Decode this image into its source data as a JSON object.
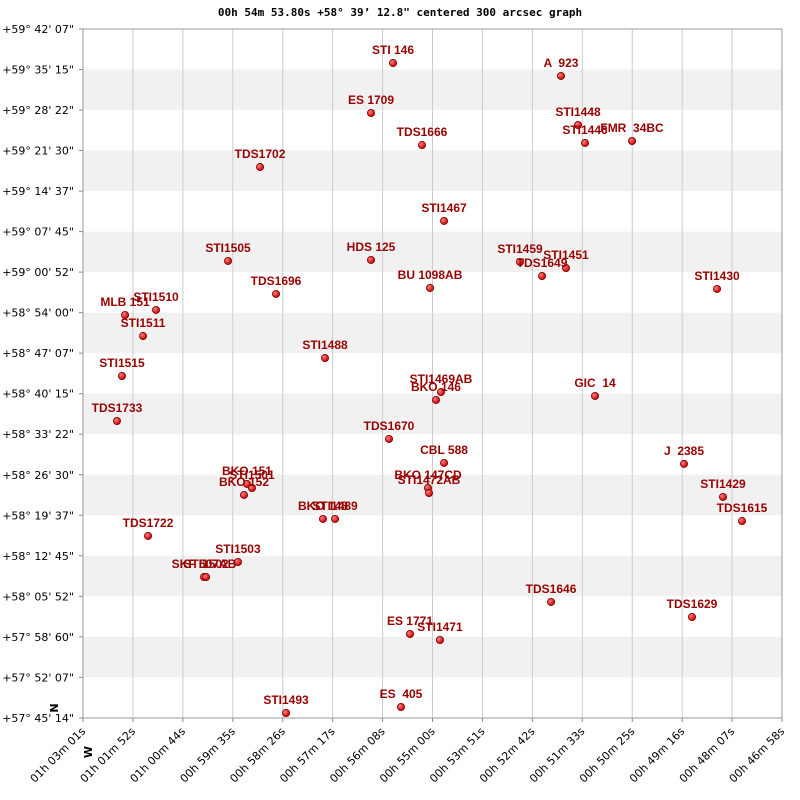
{
  "chart_data": {
    "type": "scatter",
    "title": "00h 54m 53.80s +58° 39’ 12.8\" centered 300 arcsec graph",
    "x_label": "W",
    "y_label": "N",
    "color": "#cc0000",
    "label_color": "#990000",
    "xlim": [
      3781,
      2818
    ],
    "ylim": [
      207914,
      214927
    ],
    "xticks": [
      {
        "value": 3781,
        "label": "01h 03m 01s"
      },
      {
        "value": 3712.2,
        "label": "01h 01m 52s"
      },
      {
        "value": 3643.4,
        "label": "01h 00m 44s"
      },
      {
        "value": 3574.6,
        "label": "00h 59m 35s"
      },
      {
        "value": 3505.8,
        "label": "00h 58m 26s"
      },
      {
        "value": 3437.1,
        "label": "00h 57m 17s"
      },
      {
        "value": 3368.3,
        "label": "00h 56m 08s"
      },
      {
        "value": 3299.5,
        "label": "00h 55m 00s"
      },
      {
        "value": 3230.7,
        "label": "00h 53m 51s"
      },
      {
        "value": 3161.9,
        "label": "00h 52m 42s"
      },
      {
        "value": 3093.1,
        "label": "00h 51m 33s"
      },
      {
        "value": 3024.3,
        "label": "00h 50m 25s"
      },
      {
        "value": 2955.5,
        "label": "00h 49m 16s"
      },
      {
        "value": 2886.8,
        "label": "00h 48m 07s"
      },
      {
        "value": 2818,
        "label": "00h 46m 58s"
      }
    ],
    "yticks": [
      {
        "value": 214927,
        "label": "+59° 42' 07\""
      },
      {
        "value": 214514.5,
        "label": "+59° 35' 15\""
      },
      {
        "value": 214102.1,
        "label": "+59° 28' 22\""
      },
      {
        "value": 213689.6,
        "label": "+59° 21' 30\""
      },
      {
        "value": 213277.1,
        "label": "+59° 14' 37\""
      },
      {
        "value": 212864.6,
        "label": "+59° 07' 45\""
      },
      {
        "value": 212452.2,
        "label": "+59° 00' 52\""
      },
      {
        "value": 212039.7,
        "label": "+58° 54' 00\""
      },
      {
        "value": 211627.2,
        "label": "+58° 47' 07\""
      },
      {
        "value": 211214.8,
        "label": "+58° 40' 15\""
      },
      {
        "value": 210802.3,
        "label": "+58° 33' 22\""
      },
      {
        "value": 210389.8,
        "label": "+58° 26' 30\""
      },
      {
        "value": 209977.4,
        "label": "+58° 19' 37\""
      },
      {
        "value": 209564.9,
        "label": "+58° 12' 45\""
      },
      {
        "value": 209152.4,
        "label": "+58° 05' 52\""
      },
      {
        "value": 208740,
        "label": "+57° 58' 60\""
      },
      {
        "value": 208327.5,
        "label": "+57° 52' 07\""
      },
      {
        "value": 207914,
        "label": "+57° 45' 14\""
      }
    ],
    "labels": [
      "STI 146",
      "A  923",
      "ES 1709",
      "STI1448",
      "STI1446",
      "FMR  34BC",
      "TDS1666",
      "TDS1702",
      "STI1467",
      "STI1505",
      "HDS 125",
      "STI1459",
      "TDS1649",
      "STI1451",
      "BU 1098AB",
      "TDS1696",
      "STI1430",
      "STI1510",
      "MLB 151",
      "STI1511",
      "STI1488",
      "STI1515",
      "STI1469AB",
      "BKO 146",
      "GIC  14",
      "TDS1733",
      "TDS1670",
      "CBL 588",
      "J  2385",
      "BKO 151",
      "STI1501",
      "BKO 152",
      "BKO 147CD",
      "STI1472AB",
      "STI1429",
      "BKO 148",
      "STI1489",
      "TDS1615",
      "TDS1722",
      "STI1503",
      "SKF 507AB",
      "STI1502",
      "TDS1646",
      "TDS1629",
      "ES 1771",
      "STI1471",
      "ES  405",
      "STI1493"
    ],
    "x": [
      3353.9,
      3122.5,
      3384.2,
      3099.0,
      3089.4,
      3024.6,
      3314.0,
      3537.1,
      3283.6,
      3581.2,
      3384.2,
      3178.9,
      3148.6,
      3115.6,
      3302.9,
      3515.1,
      2907.5,
      3680.4,
      3723.1,
      3698.3,
      3447.6,
      3727.3,
      3287.8,
      3294.7,
      3075.6,
      3734.2,
      3359.4,
      3283.6,
      2953.0,
      3555.1,
      3548.2,
      3559.2,
      3305.7,
      3304.3,
      2899.3,
      3450.4,
      3433.8,
      2873.1,
      3691.4,
      3567.5,
      3614.3,
      3611.5,
      3136.2,
      2942.0,
      3330.5,
      3289.2,
      3342.9,
      3501.3
    ],
    "y": [
      214581,
      214449,
      214072,
      213950,
      213767,
      213787,
      213746,
      213522,
      212973,
      212566,
      212576,
      212556,
      212413,
      212494,
      212291,
      212230,
      212281,
      212067,
      212016,
      211802,
      211578,
      211395,
      211232,
      211151,
      211192,
      210937,
      210754,
      210510,
      210500,
      210296,
      210255,
      210184,
      210255,
      210204,
      210164,
      209940,
      209940,
      209919,
      209767,
      209502,
      209349,
      209349,
      209095,
      208942,
      208769,
      208708,
      208026,
      207965
    ]
  }
}
